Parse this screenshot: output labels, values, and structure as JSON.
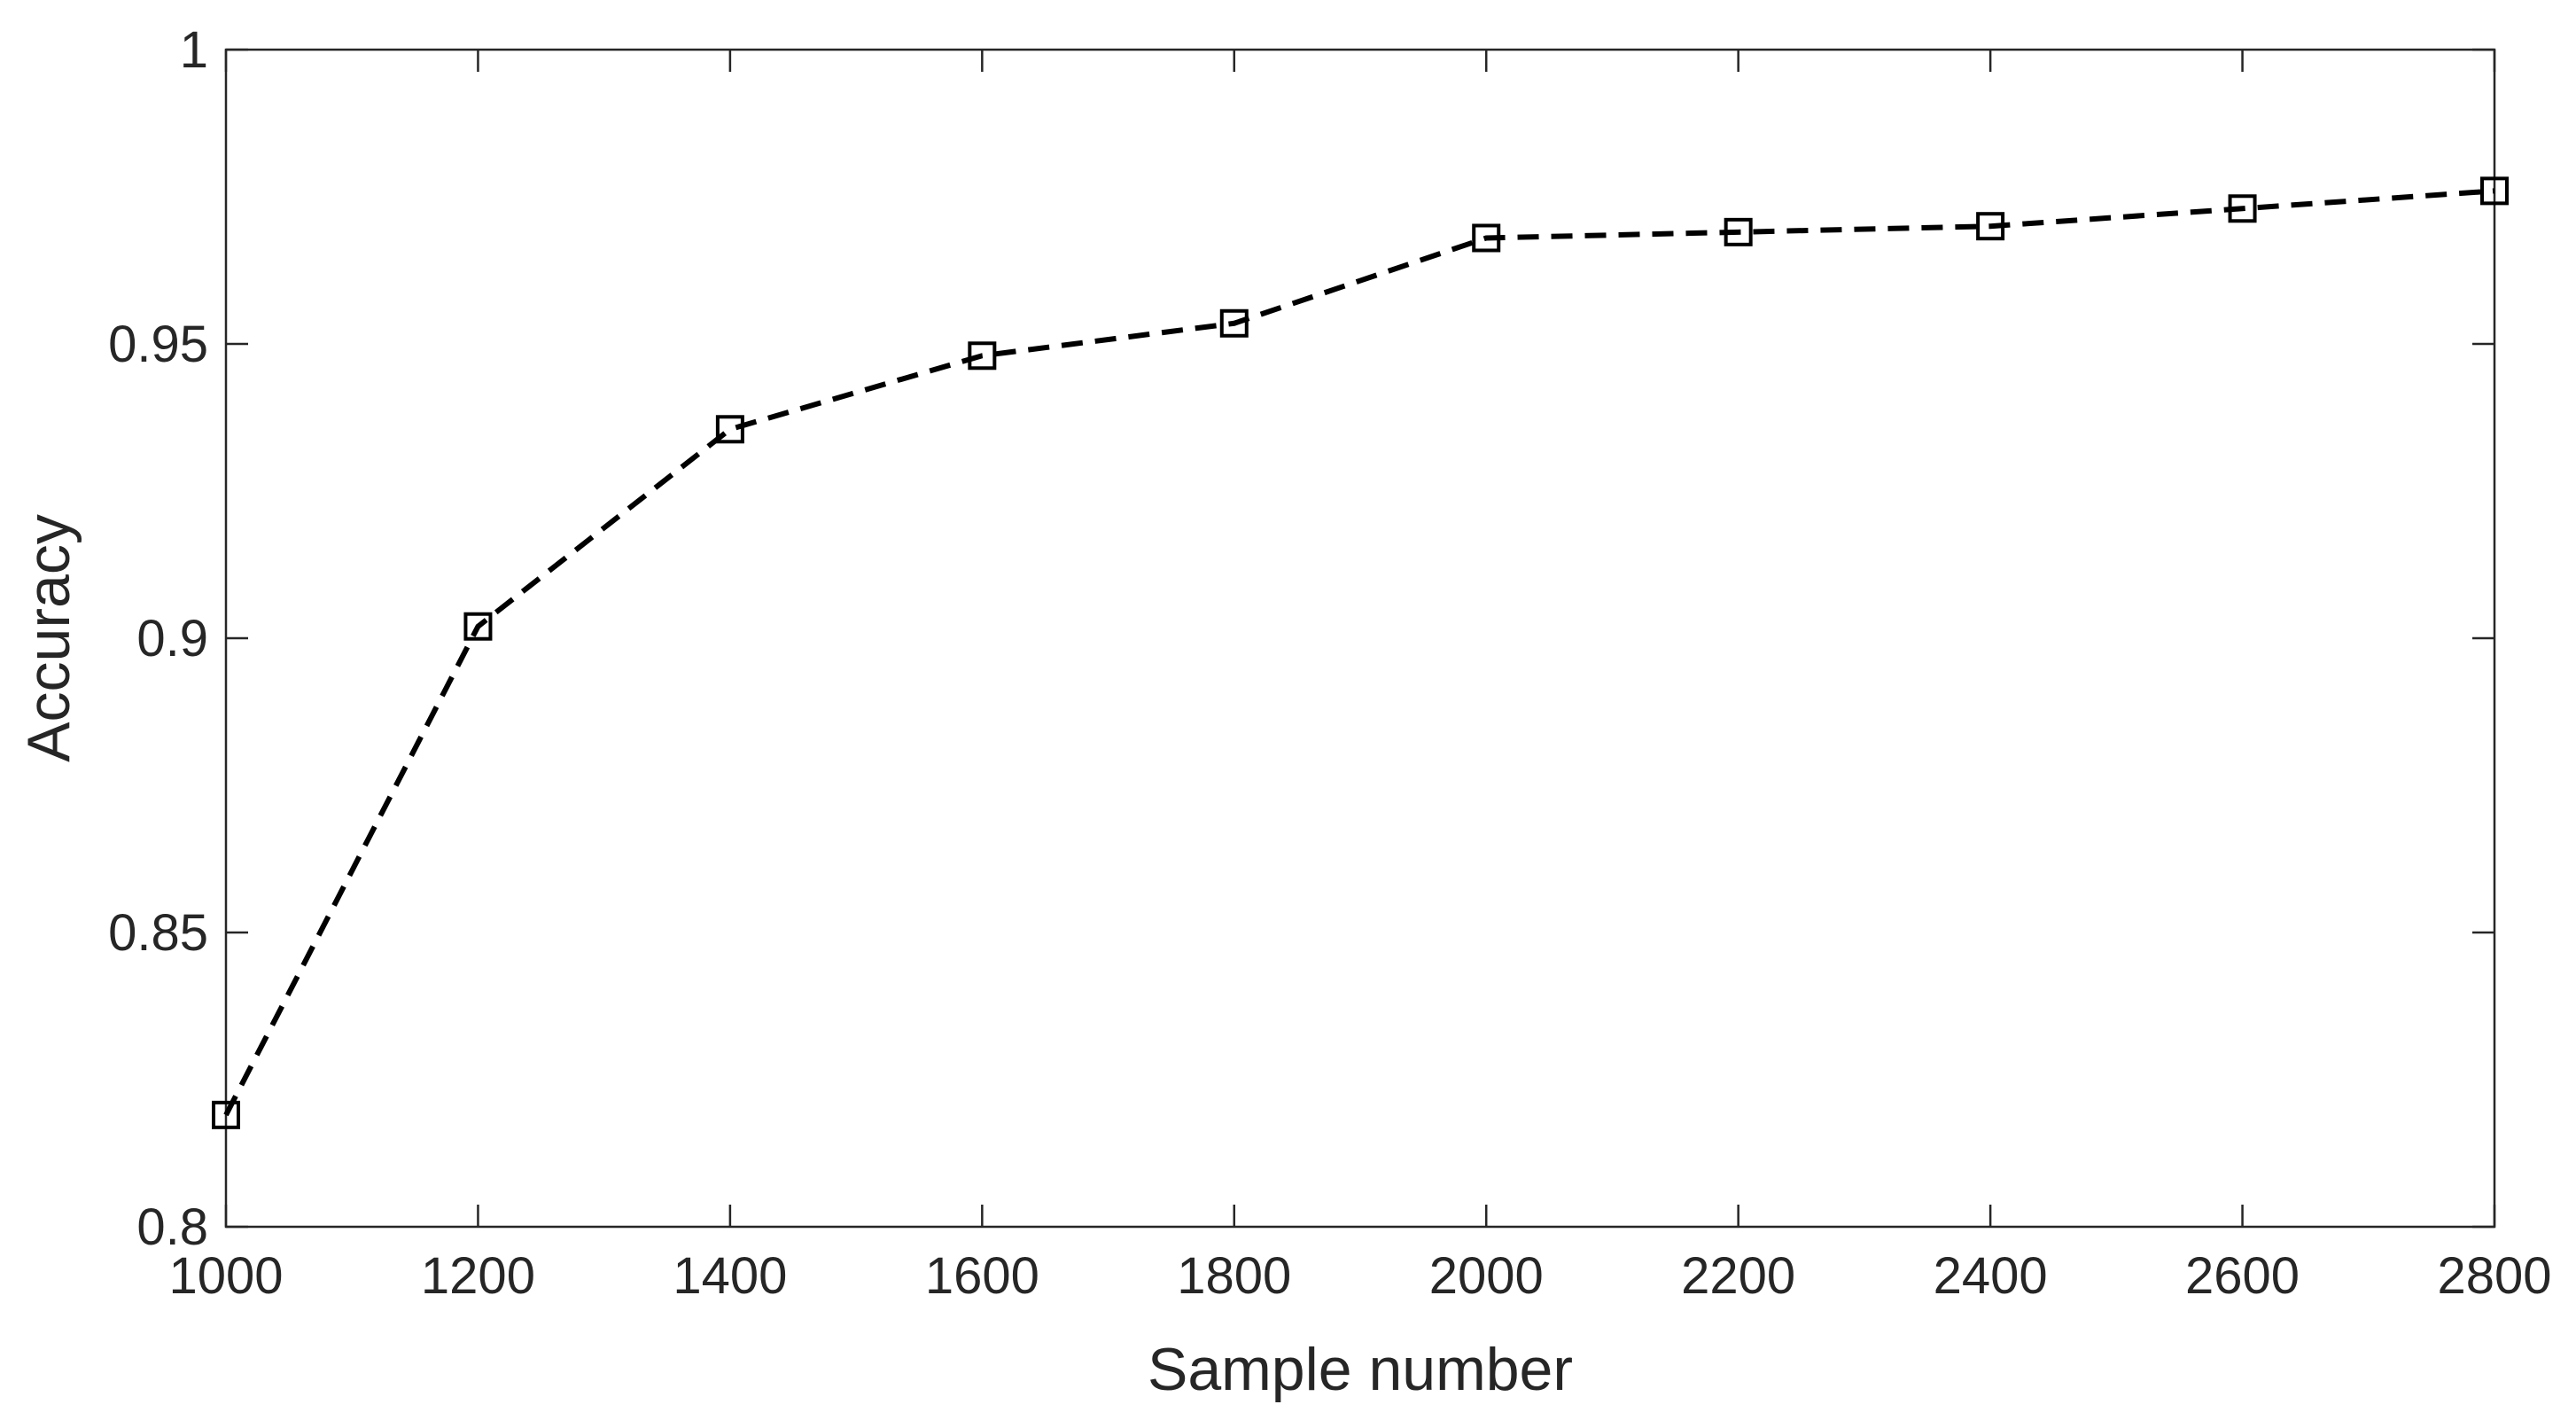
{
  "chart_data": {
    "type": "line",
    "title": "",
    "xlabel": "Sample number",
    "ylabel": "Accuracy",
    "xlim": [
      1000,
      2800
    ],
    "ylim": [
      0.8,
      1.0
    ],
    "x_ticks": [
      1000,
      1200,
      1400,
      1600,
      1800,
      2000,
      2200,
      2400,
      2600,
      2800
    ],
    "y_ticks": [
      0.8,
      0.85,
      0.9,
      0.95,
      1.0
    ],
    "x_tick_labels": [
      "1000",
      "1200",
      "1400",
      "1600",
      "1800",
      "2000",
      "2200",
      "2400",
      "2600",
      "2800"
    ],
    "y_tick_labels": [
      "0.8",
      "0.85",
      "0.9",
      "0.95",
      "1"
    ],
    "grid": false,
    "series": [
      {
        "line_style": "dashed",
        "marker": "square",
        "color": "#000000",
        "x": [
          1000,
          1200,
          1400,
          1600,
          1800,
          2000,
          2200,
          2400,
          2600,
          2800
        ],
        "y": [
          0.819,
          0.902,
          0.9355,
          0.948,
          0.9535,
          0.968,
          0.969,
          0.97,
          0.973,
          0.976
        ]
      }
    ]
  }
}
